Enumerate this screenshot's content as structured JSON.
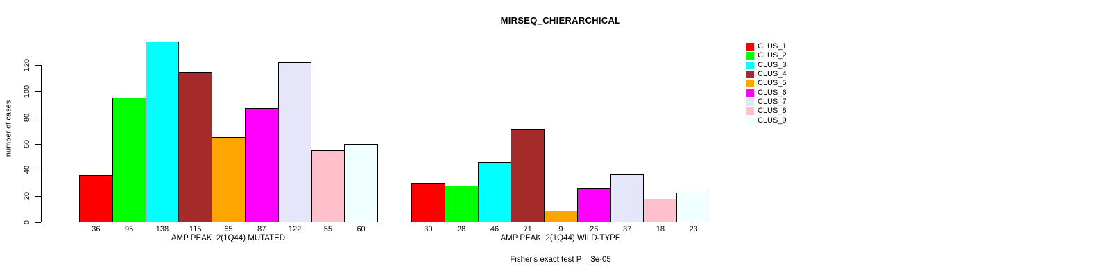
{
  "title": "MIRSEQ_CHIERARCHICAL",
  "y_axis": {
    "label": "number of cases",
    "ticks": [
      0,
      20,
      40,
      60,
      80,
      100,
      120
    ]
  },
  "footer": "Fisher's exact test P = 3e-05",
  "legend": {
    "position": "right",
    "items": [
      {
        "label": "CLUS_1",
        "color": "#FF0000"
      },
      {
        "label": "CLUS_2",
        "color": "#00FF00"
      },
      {
        "label": "CLUS_3",
        "color": "#00FFFF"
      },
      {
        "label": "CLUS_4",
        "color": "#A52A2A"
      },
      {
        "label": "CLUS_5",
        "color": "#FFA500"
      },
      {
        "label": "CLUS_6",
        "color": "#FF00FF"
      },
      {
        "label": "CLUS_7",
        "color": "#E6E6FA"
      },
      {
        "label": "CLUS_8",
        "color": "#FFC0CB"
      },
      {
        "label": "CLUS_9",
        "color": "#F0FFFF"
      }
    ]
  },
  "chart_data": [
    {
      "type": "bar",
      "group": "mutated",
      "xlabel": "AMP PEAK  2(1Q44) MUTATED",
      "ylabel": "number of cases",
      "categories": [
        "CLUS_1",
        "CLUS_2",
        "CLUS_3",
        "CLUS_4",
        "CLUS_5",
        "CLUS_6",
        "CLUS_7",
        "CLUS_8",
        "CLUS_9"
      ],
      "values": [
        36,
        95,
        138,
        115,
        65,
        87,
        122,
        55,
        60
      ],
      "bar_labels": [
        "36",
        "95",
        "138",
        "115",
        "65",
        "87",
        "122",
        "55",
        "60"
      ],
      "colors": [
        "#FF0000",
        "#00FF00",
        "#00FFFF",
        "#A52A2A",
        "#FFA500",
        "#FF00FF",
        "#E6E6FA",
        "#FFC0CB",
        "#F0FFFF"
      ],
      "ylim": [
        0,
        138
      ],
      "yticks": [
        0,
        20,
        40,
        60,
        80,
        100,
        120
      ],
      "grid": false
    },
    {
      "type": "bar",
      "group": "wild-type",
      "xlabel": "AMP PEAK  2(1Q44) WILD-TYPE",
      "ylabel": "number of cases",
      "categories": [
        "CLUS_1",
        "CLUS_2",
        "CLUS_3",
        "CLUS_4",
        "CLUS_5",
        "CLUS_6",
        "CLUS_7",
        "CLUS_8",
        "CLUS_9"
      ],
      "values": [
        30,
        28,
        46,
        71,
        9,
        26,
        37,
        18,
        23
      ],
      "bar_labels": [
        "30",
        "28",
        "46",
        "71",
        "9",
        "26",
        "37",
        "18",
        "23"
      ],
      "colors": [
        "#FF0000",
        "#00FF00",
        "#00FFFF",
        "#A52A2A",
        "#FFA500",
        "#FF00FF",
        "#E6E6FA",
        "#FFC0CB",
        "#F0FFFF"
      ],
      "ylim": [
        0,
        138
      ],
      "yticks": [
        0,
        20,
        40,
        60,
        80,
        100,
        120
      ],
      "grid": false
    }
  ]
}
